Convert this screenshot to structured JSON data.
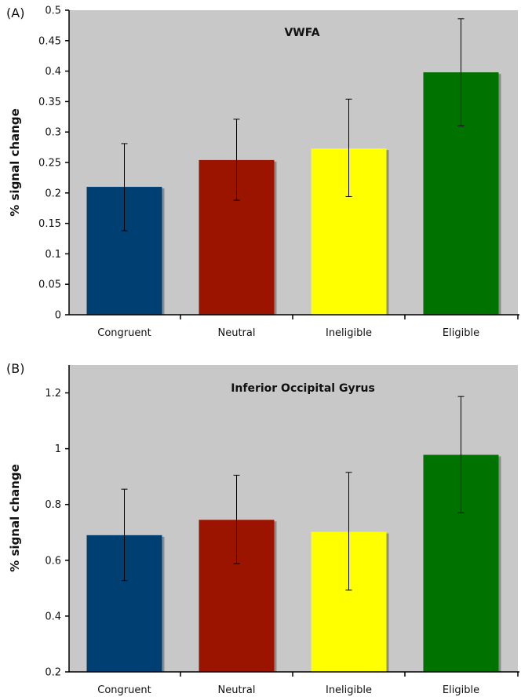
{
  "colors": {
    "background": "#c8c8c8",
    "bar_shadow": "#8c8c8c",
    "categories": [
      "#003f72",
      "#9b1400",
      "#ffff00",
      "#007200"
    ]
  },
  "chart_data": [
    {
      "type": "bar",
      "panel": "(A)",
      "title": "VWFA",
      "ylabel": "% signal change",
      "xlabel": "",
      "categories": [
        "Congruent",
        "Neutral",
        "Ineligible",
        "Eligible"
      ],
      "values": [
        0.21,
        0.254,
        0.273,
        0.398
      ],
      "error_low": [
        0.138,
        0.188,
        0.194,
        0.31
      ],
      "error_high": [
        0.281,
        0.321,
        0.354,
        0.486
      ],
      "ylim": [
        0,
        0.5
      ],
      "yticks": [
        "0",
        "0.05",
        "0.1",
        "0.15",
        "0.2",
        "0.25",
        "0.3",
        "0.35",
        "0.4",
        "0.45",
        "0.5"
      ],
      "ytick_values": [
        0,
        0.05,
        0.1,
        0.15,
        0.2,
        0.25,
        0.3,
        0.35,
        0.4,
        0.45,
        0.5
      ],
      "grid": false,
      "legend": "none"
    },
    {
      "type": "bar",
      "panel": "(B)",
      "title": "Inferior Occipital Gyrus",
      "ylabel": "% signal change",
      "xlabel": "",
      "categories": [
        "Congruent",
        "Neutral",
        "Ineligible",
        "Eligible"
      ],
      "values": [
        0.69,
        0.745,
        0.702,
        0.978
      ],
      "error_low": [
        0.527,
        0.588,
        0.493,
        0.77
      ],
      "error_high": [
        0.855,
        0.905,
        0.915,
        1.187
      ],
      "ylim": [
        0.2,
        1.3
      ],
      "yticks": [
        "0.2",
        "0.4",
        "0.6",
        "0.8",
        "1",
        "1.2"
      ],
      "ytick_values": [
        0.2,
        0.4,
        0.6,
        0.8,
        1.0,
        1.2
      ],
      "grid": false,
      "legend": "none"
    }
  ]
}
